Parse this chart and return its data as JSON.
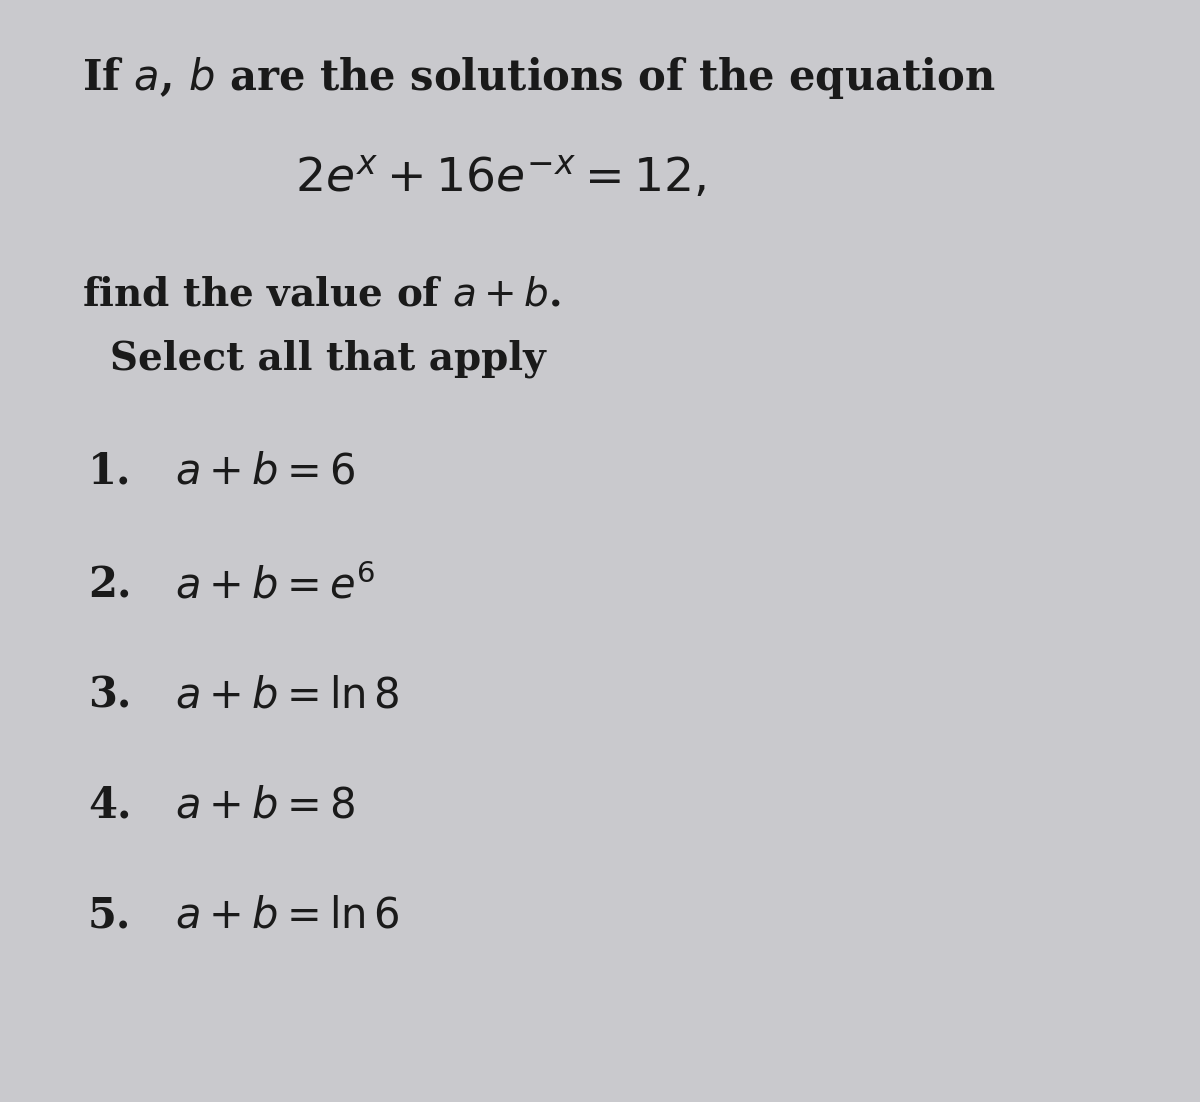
{
  "background_color": "#c9c9cd",
  "text_color": "#1a1a1a",
  "fig_width": 12.0,
  "fig_height": 11.02,
  "dpi": 100,
  "title_line1": "If $a$, $b$ are the solutions of the equation",
  "equation": "$2e^{x} + 16e^{-x} = 12,$",
  "subtitle_line1": "find the value of $a + b$.",
  "subtitle_line2": "Select all that apply",
  "options": [
    {
      "num": "1.",
      "text": "$a+b = 6$"
    },
    {
      "num": "2.",
      "text": "$a+b = e^6$"
    },
    {
      "num": "3.",
      "text": "$a+b = \\ln 8$"
    },
    {
      "num": "4.",
      "text": "$a+b = 8$"
    },
    {
      "num": "5.",
      "text": "$a+b = \\ln 6$"
    }
  ],
  "title_fontsize": 30,
  "equation_fontsize": 34,
  "subtitle_fontsize": 28,
  "option_fontsize": 30
}
